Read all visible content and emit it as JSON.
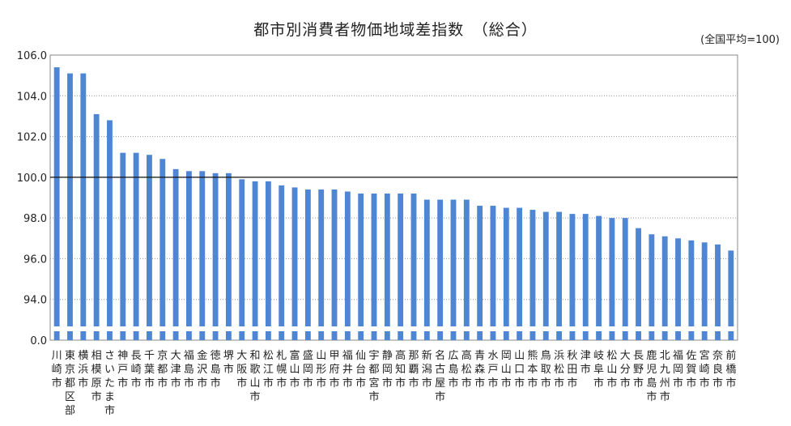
{
  "chart_data": {
    "type": "bar",
    "title": "都市別消費者物価地域差指数　（総合）",
    "note": "(全国平均=100)",
    "ylim": [
      92,
      106
    ],
    "axis_break": true,
    "y_ticks": [
      "0.0",
      "94.0",
      "96.0",
      "98.0",
      "100.0",
      "102.0",
      "104.0",
      "106.0"
    ],
    "reference_line": 100.0,
    "bar_color": "#4f86d4",
    "grid": true,
    "categories": [
      "川崎市",
      "東京都区部",
      "横浜市",
      "相模原市",
      "さいたま市",
      "神戸市",
      "長崎市",
      "千葉市",
      "京都市",
      "大津市",
      "福島市",
      "金沢市",
      "徳島市",
      "堺市",
      "大阪市",
      "和歌山市",
      "松江市",
      "札幌市",
      "富山市",
      "盛岡市",
      "山形市",
      "甲府市",
      "福井市",
      "仙台市",
      "宇都宮市",
      "静岡市",
      "高知市",
      "那覇市",
      "新潟市",
      "名古屋市",
      "広島市",
      "高松市",
      "青森市",
      "水戸市",
      "岡山市",
      "山口市",
      "熊本市",
      "鳥取市",
      "浜松市",
      "秋田市",
      "津市",
      "岐阜市",
      "松山市",
      "大分市",
      "長野市",
      "鹿児島市",
      "北九州市",
      "福岡市",
      "佐賀市",
      "宮崎市",
      "奈良市",
      "前橋市"
    ],
    "values": [
      105.4,
      105.1,
      105.1,
      103.1,
      102.8,
      101.2,
      101.2,
      101.1,
      100.9,
      100.4,
      100.3,
      100.3,
      100.2,
      100.2,
      99.9,
      99.8,
      99.8,
      99.6,
      99.5,
      99.4,
      99.4,
      99.4,
      99.3,
      99.2,
      99.2,
      99.2,
      99.2,
      99.2,
      98.9,
      98.9,
      98.9,
      98.9,
      98.6,
      98.6,
      98.5,
      98.5,
      98.4,
      98.3,
      98.3,
      98.2,
      98.2,
      98.1,
      98.0,
      98.0,
      97.5,
      97.2,
      97.1,
      97.0,
      96.9,
      96.8,
      96.7,
      96.4
    ]
  }
}
